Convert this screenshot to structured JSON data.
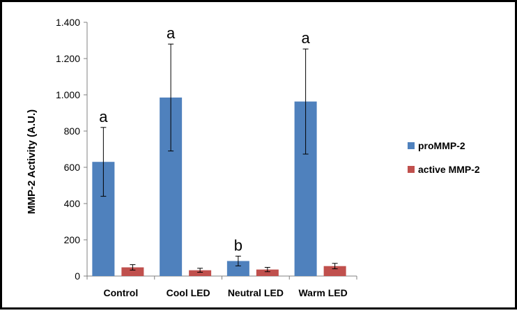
{
  "chart_data": {
    "type": "bar",
    "title": "",
    "xlabel": "",
    "ylabel": "MMP-2 Activity (A.U.)",
    "ylim": [
      0,
      1400
    ],
    "yticks": [
      0,
      200,
      400,
      600,
      800,
      1000,
      1200,
      1400
    ],
    "ytick_labels": [
      "0",
      "200",
      "400",
      "600",
      "800",
      "1.000",
      "1.200",
      "1.400"
    ],
    "categories": [
      "Control",
      "Cool LED",
      "Neutral LED",
      "Warm LED"
    ],
    "series": [
      {
        "name": "proMMP-2",
        "color": "#4f81bd",
        "values": [
          630,
          985,
          83,
          963
        ],
        "errors": [
          190,
          295,
          27,
          290
        ]
      },
      {
        "name": "active MMP-2",
        "color": "#c0504d",
        "values": [
          48,
          32,
          36,
          55
        ],
        "errors": [
          15,
          11,
          12,
          15
        ]
      }
    ],
    "annotations": [
      "a",
      "a",
      "b",
      "a"
    ],
    "grid": false,
    "legend_position": "right"
  }
}
